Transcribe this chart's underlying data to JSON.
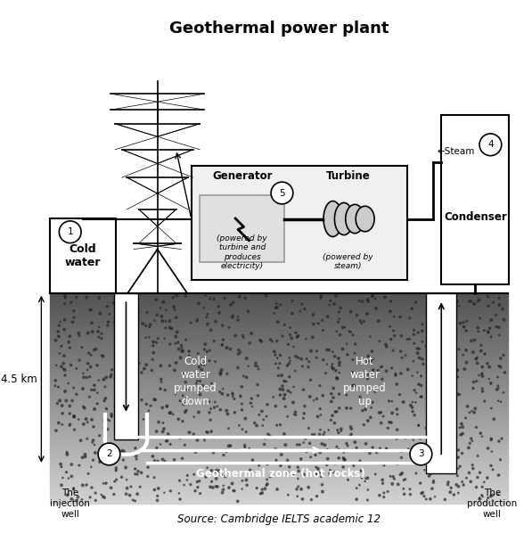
{
  "title": "Geothermal power plant",
  "source": "Source: Cambridge IELTS academic 12",
  "bg_color": "#ffffff",
  "labels": {
    "cold_water": "Cold\nwater",
    "injection_well": "The\ninjection\nwell",
    "production_well": "The\nproduction\nwell",
    "cold_water_pumped": "Cold\nwater\npumped\ndown",
    "hot_water_pumped": "Hot\nwater\npumped\nup",
    "geothermal_zone": "Geothermal zone (hot rocks)",
    "generator": "Generator",
    "turbine": "Turbine",
    "condenser": "Condenser",
    "steam": "←Steam",
    "gen_sub": "(powered by\nturbine and\nproduces\nelectricity)",
    "turb_sub": "(powered by\nsteam)",
    "depth": "4.5 km",
    "num1": "1",
    "num2": "2",
    "num3": "3",
    "num4": "4",
    "num5": "5"
  },
  "title_fontsize": 13,
  "label_fontsize": 8.5,
  "source_fontsize": 8.5
}
